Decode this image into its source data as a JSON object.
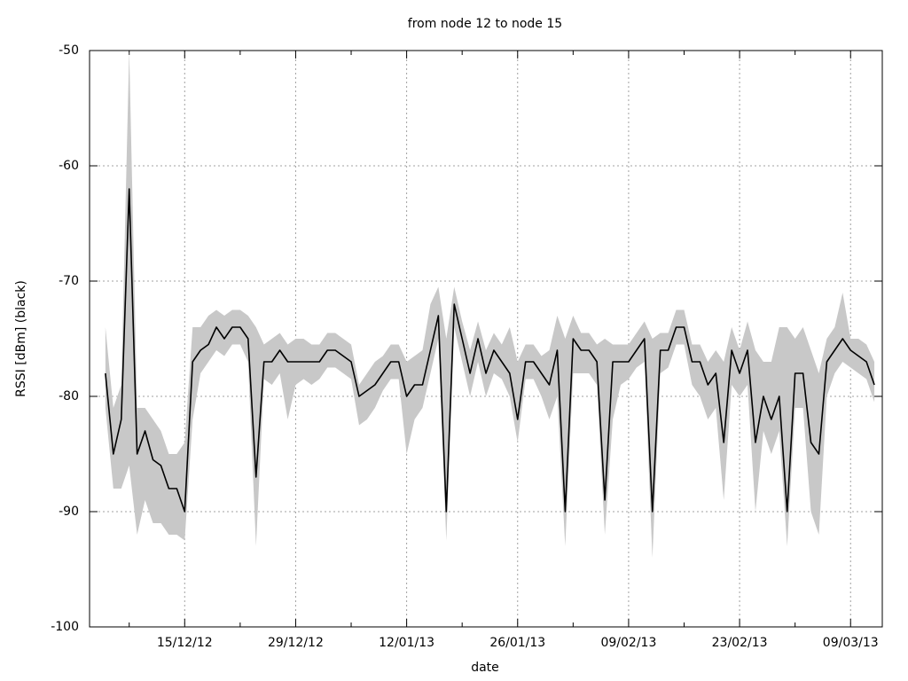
{
  "chart_data": {
    "type": "line",
    "title": "from node 12 to node 15",
    "xlabel": "date",
    "ylabel": "RSSI [dBm] (black)",
    "xlim": [
      "2012-12-03",
      "2013-03-13"
    ],
    "xticks": [
      {
        "value": "2012-12-15",
        "label": "15/12/12"
      },
      {
        "value": "2012-12-29",
        "label": "29/12/12"
      },
      {
        "value": "2013-01-12",
        "label": "12/01/13"
      },
      {
        "value": "2013-01-26",
        "label": "26/01/13"
      },
      {
        "value": "2013-02-09",
        "label": "09/02/13"
      },
      {
        "value": "2013-02-23",
        "label": "23/02/13"
      },
      {
        "value": "2013-03-09",
        "label": "09/03/13"
      }
    ],
    "xminorticks": [
      "2012-12-08",
      "2012-12-22",
      "2013-01-05",
      "2013-01-19",
      "2013-02-02",
      "2013-02-16",
      "2013-03-02"
    ],
    "ylim": [
      -100,
      -50
    ],
    "yticks": [
      -100,
      -90,
      -80,
      -70,
      -60,
      -50
    ],
    "grid": true,
    "color": "#000000",
    "band_color": "#c8c8c8",
    "x": [
      "2012-12-05",
      "2012-12-06",
      "2012-12-07",
      "2012-12-08",
      "2012-12-09",
      "2012-12-10",
      "2012-12-11",
      "2012-12-12",
      "2012-12-13",
      "2012-12-14",
      "2012-12-15",
      "2012-12-16",
      "2012-12-17",
      "2012-12-18",
      "2012-12-19",
      "2012-12-20",
      "2012-12-21",
      "2012-12-22",
      "2012-12-23",
      "2012-12-24",
      "2012-12-25",
      "2012-12-26",
      "2012-12-27",
      "2012-12-28",
      "2012-12-29",
      "2012-12-30",
      "2012-12-31",
      "2013-01-01",
      "2013-01-02",
      "2013-01-03",
      "2013-01-04",
      "2013-01-05",
      "2013-01-06",
      "2013-01-07",
      "2013-01-08",
      "2013-01-09",
      "2013-01-10",
      "2013-01-11",
      "2013-01-12",
      "2013-01-13",
      "2013-01-14",
      "2013-01-15",
      "2013-01-16",
      "2013-01-17",
      "2013-01-18",
      "2013-01-19",
      "2013-01-20",
      "2013-01-21",
      "2013-01-22",
      "2013-01-23",
      "2013-01-24",
      "2013-01-25",
      "2013-01-26",
      "2013-01-27",
      "2013-01-28",
      "2013-01-29",
      "2013-01-30",
      "2013-01-31",
      "2013-02-01",
      "2013-02-02",
      "2013-02-03",
      "2013-02-04",
      "2013-02-05",
      "2013-02-06",
      "2013-02-07",
      "2013-02-08",
      "2013-02-09",
      "2013-02-10",
      "2013-02-11",
      "2013-02-12",
      "2013-02-13",
      "2013-02-14",
      "2013-02-15",
      "2013-02-16",
      "2013-02-17",
      "2013-02-18",
      "2013-02-19",
      "2013-02-20",
      "2013-02-21",
      "2013-02-22",
      "2013-02-23",
      "2013-02-24",
      "2013-02-25",
      "2013-02-26",
      "2013-02-27",
      "2013-02-28",
      "2013-03-01",
      "2013-03-02",
      "2013-03-03",
      "2013-03-04",
      "2013-03-05",
      "2013-03-06",
      "2013-03-07",
      "2013-03-08",
      "2013-03-09",
      "2013-03-10",
      "2013-03-11",
      "2013-03-12"
    ],
    "values": [
      -78,
      -85,
      -82,
      -62,
      -85,
      -83,
      -85.5,
      -86,
      -88,
      -88,
      -90,
      -77,
      -76,
      -75.5,
      -74,
      -75,
      -74,
      -74,
      -75,
      -87,
      -77,
      -77,
      -76,
      -77,
      -77,
      -77,
      -77,
      -77,
      -76,
      -76,
      -76.5,
      -77,
      -80,
      -79.5,
      -79,
      -78,
      -77,
      -77,
      -80,
      -79,
      -79,
      -76,
      -73,
      -90,
      -72,
      -75,
      -78,
      -75,
      -78,
      -76,
      -77,
      -78,
      -82,
      -77,
      -77,
      -78,
      -79,
      -76,
      -90,
      -75,
      -76,
      -76,
      -77,
      -89,
      -77,
      -77,
      -77,
      -76,
      -75,
      -90,
      -76,
      -76,
      -74,
      -74,
      -77,
      -77,
      -79,
      -78,
      -84,
      -76,
      -78,
      -76,
      -84,
      -80,
      -82,
      -80,
      -90,
      -78,
      -78,
      -84,
      -85,
      -77,
      -76,
      -75,
      -76,
      -76.5,
      -77,
      -79
    ],
    "band_high": [
      -74,
      -81,
      -79,
      -50,
      -81,
      -81,
      -82,
      -83,
      -85,
      -85,
      -84,
      -74,
      -74,
      -73,
      -72.5,
      -73,
      -72.5,
      -72.5,
      -73,
      -74,
      -75.5,
      -75,
      -74.5,
      -75.5,
      -75,
      -75,
      -75.5,
      -75.5,
      -74.5,
      -74.5,
      -75,
      -75.5,
      -79,
      -78,
      -77,
      -76.5,
      -75.5,
      -75.5,
      -77,
      -76.5,
      -76,
      -72,
      -70.5,
      -75,
      -70.5,
      -73.5,
      -76,
      -73.5,
      -76,
      -74.5,
      -75.5,
      -74,
      -77,
      -75.5,
      -75.5,
      -76.5,
      -76,
      -73,
      -75,
      -73,
      -74.5,
      -74.5,
      -75.5,
      -75,
      -75.5,
      -75.5,
      -75.5,
      -74.5,
      -73.5,
      -75,
      -74.5,
      -74.5,
      -72.5,
      -72.5,
      -75.5,
      -75.5,
      -77,
      -76,
      -77,
      -74,
      -76,
      -73.5,
      -76,
      -77,
      -77,
      -74,
      -74,
      -75,
      -74,
      -76,
      -78,
      -75,
      -74,
      -71,
      -75,
      -75,
      -75.5,
      -77
    ],
    "band_low": [
      -81,
      -88,
      -88,
      -86,
      -92,
      -89,
      -91,
      -91,
      -92,
      -92,
      -92.5,
      -82,
      -78,
      -77,
      -76,
      -76.5,
      -75.5,
      -75.5,
      -77,
      -93,
      -78.5,
      -79,
      -78,
      -82,
      -79,
      -78.5,
      -79,
      -78.5,
      -77.5,
      -77.5,
      -78,
      -78.5,
      -82.5,
      -82,
      -81,
      -79.5,
      -78.5,
      -78.5,
      -85,
      -82,
      -81,
      -78,
      -75,
      -92.5,
      -74,
      -77,
      -80,
      -77,
      -80,
      -78,
      -78.5,
      -80,
      -84,
      -78.5,
      -78.5,
      -80,
      -82,
      -80,
      -93,
      -78,
      -78,
      -78,
      -79,
      -92,
      -82,
      -79,
      -78.5,
      -77.5,
      -77,
      -94,
      -78,
      -77.5,
      -75.5,
      -75.5,
      -79,
      -80,
      -82,
      -81,
      -89,
      -79,
      -80,
      -79,
      -90,
      -83,
      -85,
      -83,
      -93,
      -81,
      -81,
      -90,
      -92,
      -80,
      -78,
      -77,
      -77.5,
      -78,
      -78.5,
      -80.5
    ]
  }
}
